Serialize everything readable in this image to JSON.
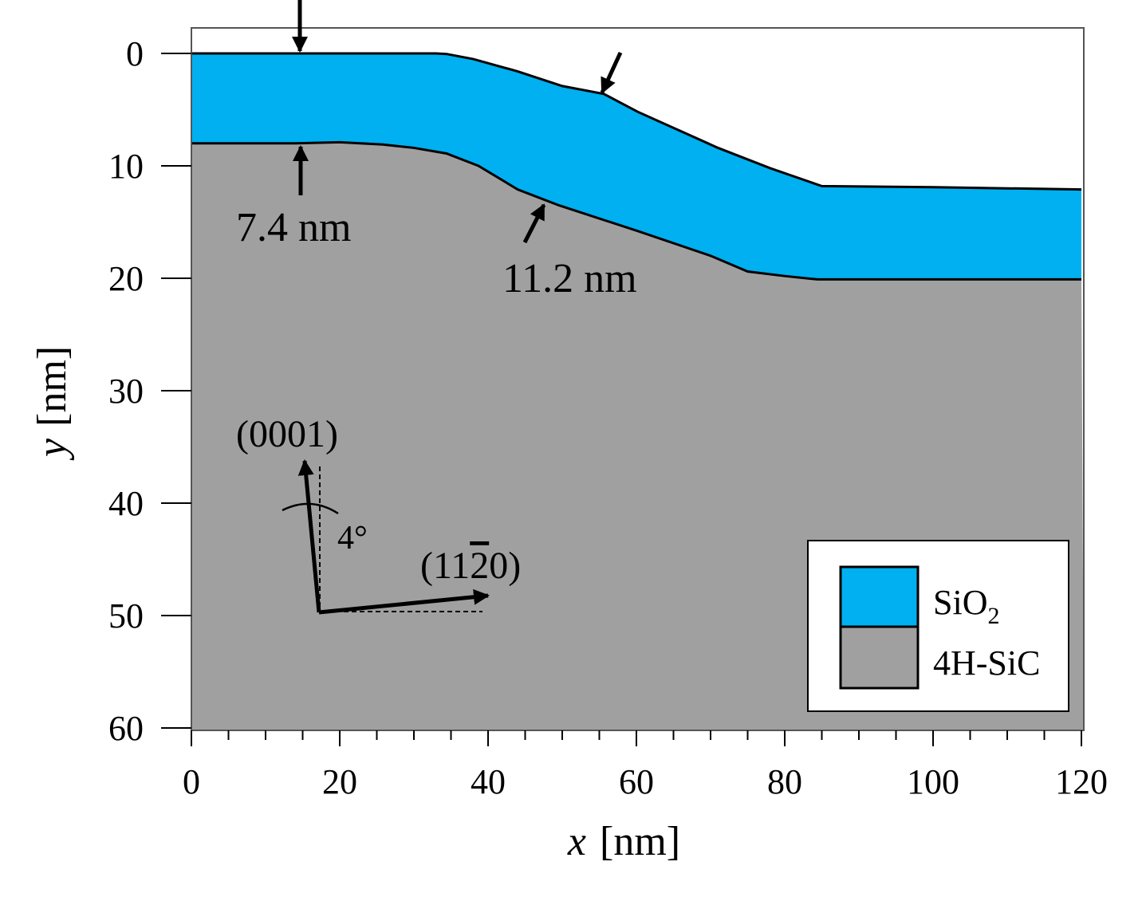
{
  "chart_data": {
    "type": "area",
    "xlabel_var": "x",
    "xlabel_unit": "[nm]",
    "ylabel_var": "y",
    "ylabel_unit": "[nm]",
    "xlim": [
      0,
      120
    ],
    "ylim": [
      60,
      -2
    ],
    "y_inverted": true,
    "x_ticks": [
      "0",
      "20",
      "40",
      "60",
      "80",
      "100",
      "120"
    ],
    "y_ticks": [
      "0",
      "10",
      "20",
      "30",
      "40",
      "50",
      "60"
    ],
    "grid": false,
    "legend_position": "bottom-right",
    "series": [
      {
        "name": "SiO2",
        "legend_label": "SiO",
        "legend_sub": "2",
        "color": "#00b0f0",
        "top_boundary": {
          "x": [
            0,
            33,
            34.4,
            38,
            44,
            50,
            55.6,
            60.2,
            71,
            78,
            85,
            100,
            110,
            120
          ],
          "y": [
            0,
            0,
            0.05,
            0.5,
            1.6,
            2.9,
            3.6,
            5.2,
            8.4,
            10.2,
            11.8,
            11.9,
            12.0,
            12.1
          ]
        }
      },
      {
        "name": "4H-SiC",
        "legend_label": "4H-SiC",
        "color": "#a0a0a0",
        "top_boundary": {
          "x": [
            0,
            14,
            20,
            25.8,
            30,
            34.4,
            38.7,
            44,
            49.5,
            60.2,
            70,
            75,
            80,
            84.4,
            120
          ],
          "y": [
            8.0,
            8.0,
            7.9,
            8.1,
            8.4,
            8.9,
            10.0,
            12.1,
            13.5,
            15.8,
            18.0,
            19.4,
            19.8,
            20.1,
            20.1
          ]
        }
      }
    ],
    "annotations": {
      "thickness_flat": "7.4 nm",
      "thickness_slope": "11.2 nm",
      "axis_c": "(0001)",
      "axis_a_prefix": "(11",
      "axis_a_bar": "2",
      "axis_a_suffix": "0)",
      "angle": "4°"
    }
  }
}
